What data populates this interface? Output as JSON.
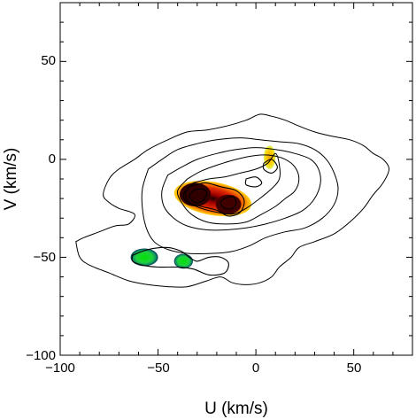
{
  "chart_data": {
    "type": "contour",
    "xlabel": "U (km/s)",
    "ylabel": "V (km/s)",
    "xlim": [
      -100,
      80
    ],
    "ylim": [
      -100,
      80
    ],
    "x_ticks": [
      -100,
      -50,
      0,
      50
    ],
    "y_ticks": [
      -100,
      -50,
      0,
      50
    ],
    "x_tick_labels": [
      "−100",
      "−50",
      "0",
      "50"
    ],
    "y_tick_labels": [
      "−100",
      "−50",
      "0",
      "50"
    ],
    "contour_levels": [
      [
        [
          -92,
          -42
        ],
        [
          -88,
          -40
        ],
        [
          -80,
          -37
        ],
        [
          -72,
          -34
        ],
        [
          -65,
          -33
        ],
        [
          -62,
          -28
        ],
        [
          -70,
          -25
        ],
        [
          -75,
          -22
        ],
        [
          -78,
          -18
        ],
        [
          -75,
          -10
        ],
        [
          -70,
          -5
        ],
        [
          -62,
          0
        ],
        [
          -55,
          5
        ],
        [
          -45,
          10
        ],
        [
          -35,
          14
        ],
        [
          -25,
          15
        ],
        [
          -15,
          17
        ],
        [
          -5,
          20
        ],
        [
          2,
          23
        ],
        [
          8,
          22
        ],
        [
          15,
          20
        ],
        [
          22,
          17
        ],
        [
          30,
          14
        ],
        [
          38,
          12
        ],
        [
          48,
          10
        ],
        [
          55,
          7
        ],
        [
          60,
          3
        ],
        [
          65,
          0
        ],
        [
          68,
          -5
        ],
        [
          65,
          -12
        ],
        [
          60,
          -18
        ],
        [
          55,
          -25
        ],
        [
          48,
          -32
        ],
        [
          40,
          -38
        ],
        [
          30,
          -42
        ],
        [
          22,
          -45
        ],
        [
          18,
          -50
        ],
        [
          12,
          -55
        ],
        [
          8,
          -60
        ],
        [
          2,
          -63
        ],
        [
          -5,
          -64
        ],
        [
          -12,
          -63
        ],
        [
          -18,
          -60
        ],
        [
          -25,
          -62
        ],
        [
          -35,
          -65
        ],
        [
          -45,
          -65
        ],
        [
          -55,
          -64
        ],
        [
          -65,
          -62
        ],
        [
          -75,
          -58
        ],
        [
          -85,
          -54
        ],
        [
          -90,
          -50
        ],
        [
          -92,
          -42
        ]
      ],
      [
        [
          -55,
          -5
        ],
        [
          -48,
          0
        ],
        [
          -40,
          5
        ],
        [
          -30,
          8
        ],
        [
          -20,
          10
        ],
        [
          -8,
          11
        ],
        [
          2,
          10
        ],
        [
          12,
          9
        ],
        [
          22,
          8
        ],
        [
          30,
          5
        ],
        [
          36,
          0
        ],
        [
          40,
          -7
        ],
        [
          42,
          -15
        ],
        [
          40,
          -23
        ],
        [
          34,
          -30
        ],
        [
          25,
          -35
        ],
        [
          15,
          -37
        ],
        [
          5,
          -40
        ],
        [
          -3,
          -44
        ],
        [
          -12,
          -47
        ],
        [
          -22,
          -48
        ],
        [
          -35,
          -48
        ],
        [
          -45,
          -46
        ],
        [
          -52,
          -42
        ],
        [
          -56,
          -35
        ],
        [
          -58,
          -25
        ],
        [
          -58,
          -15
        ],
        [
          -55,
          -5
        ]
      ],
      [
        [
          -45,
          -8
        ],
        [
          -38,
          -4
        ],
        [
          -30,
          0
        ],
        [
          -20,
          3
        ],
        [
          -10,
          5
        ],
        [
          0,
          6
        ],
        [
          10,
          5
        ],
        [
          20,
          3
        ],
        [
          28,
          0
        ],
        [
          32,
          -5
        ],
        [
          33,
          -12
        ],
        [
          30,
          -20
        ],
        [
          24,
          -26
        ],
        [
          15,
          -30
        ],
        [
          5,
          -33
        ],
        [
          -5,
          -35
        ],
        [
          -15,
          -36
        ],
        [
          -25,
          -36
        ],
        [
          -35,
          -34
        ],
        [
          -42,
          -30
        ],
        [
          -47,
          -24
        ],
        [
          -48,
          -16
        ],
        [
          -45,
          -8
        ]
      ],
      [
        [
          -35,
          -10
        ],
        [
          -28,
          -6
        ],
        [
          -20,
          -3
        ],
        [
          -10,
          0
        ],
        [
          0,
          2
        ],
        [
          8,
          2
        ],
        [
          15,
          0
        ],
        [
          20,
          -4
        ],
        [
          22,
          -10
        ],
        [
          20,
          -16
        ],
        [
          15,
          -20
        ],
        [
          10,
          -24
        ],
        [
          3,
          -28
        ],
        [
          -5,
          -32
        ],
        [
          -15,
          -33
        ],
        [
          -25,
          -32
        ],
        [
          -33,
          -28
        ],
        [
          -38,
          -22
        ],
        [
          -40,
          -16
        ],
        [
          -35,
          -10
        ]
      ],
      [
        [
          -32,
          -12
        ],
        [
          -24,
          -10
        ],
        [
          -16,
          -9
        ],
        [
          -8,
          -7
        ],
        [
          0,
          -5
        ],
        [
          6,
          -2
        ],
        [
          10,
          3
        ],
        [
          12,
          -3
        ],
        [
          12,
          -10
        ],
        [
          8,
          -15
        ],
        [
          2,
          -20
        ],
        [
          -5,
          -25
        ],
        [
          -12,
          -28
        ],
        [
          -20,
          -27
        ],
        [
          -28,
          -25
        ],
        [
          -34,
          -22
        ],
        [
          -36,
          -17
        ],
        [
          -32,
          -12
        ]
      ],
      [
        [
          -34,
          -14
        ],
        [
          -26,
          -12
        ],
        [
          -18,
          -14
        ],
        [
          -10,
          -16
        ],
        [
          -6,
          -21
        ],
        [
          -8,
          -27
        ],
        [
          -14,
          -29
        ],
        [
          -20,
          -26
        ],
        [
          -28,
          -24
        ],
        [
          -35,
          -22
        ],
        [
          -37,
          -18
        ],
        [
          -34,
          -14
        ]
      ],
      [
        [
          -32,
          -16
        ],
        [
          -28,
          -15
        ],
        [
          -25,
          -17
        ],
        [
          -27,
          -21
        ],
        [
          -31,
          -22
        ],
        [
          -34,
          -19
        ],
        [
          -32,
          -16
        ]
      ],
      [
        [
          -16,
          -20
        ],
        [
          -12,
          -19
        ],
        [
          -10,
          -22
        ],
        [
          -12,
          -25
        ],
        [
          -16,
          -25
        ],
        [
          -18,
          -22
        ],
        [
          -16,
          -20
        ]
      ],
      [
        [
          -5,
          -10
        ],
        [
          0,
          -9
        ],
        [
          3,
          -12
        ],
        [
          0,
          -14
        ],
        [
          -5,
          -13
        ],
        [
          -5,
          -10
        ]
      ],
      [
        [
          -63,
          -49
        ],
        [
          -55,
          -46
        ],
        [
          -45,
          -45
        ],
        [
          -38,
          -47
        ],
        [
          -34,
          -50
        ],
        [
          -30,
          -52
        ],
        [
          -24,
          -50
        ],
        [
          -18,
          -50
        ],
        [
          -14,
          -53
        ],
        [
          -16,
          -58
        ],
        [
          -24,
          -59
        ],
        [
          -32,
          -56
        ],
        [
          -40,
          -55
        ],
        [
          -50,
          -55
        ],
        [
          -58,
          -54
        ],
        [
          -63,
          -52
        ],
        [
          -63,
          -49
        ]
      ],
      [
        [
          4,
          -2
        ],
        [
          8,
          0
        ],
        [
          11,
          -4
        ],
        [
          8,
          -7
        ],
        [
          4,
          -5
        ],
        [
          4,
          -2
        ]
      ]
    ],
    "density_peaks": [
      {
        "u": -30,
        "v": -18,
        "color": "#cc1a00"
      },
      {
        "u": -14,
        "v": -23,
        "color": "#cc1a00"
      },
      {
        "u": 7,
        "v": 0,
        "color": "#f0c000"
      },
      {
        "u": -57,
        "v": -50,
        "color": "#00d020"
      },
      {
        "u": -37,
        "v": -52,
        "color": "#00d020"
      }
    ]
  }
}
